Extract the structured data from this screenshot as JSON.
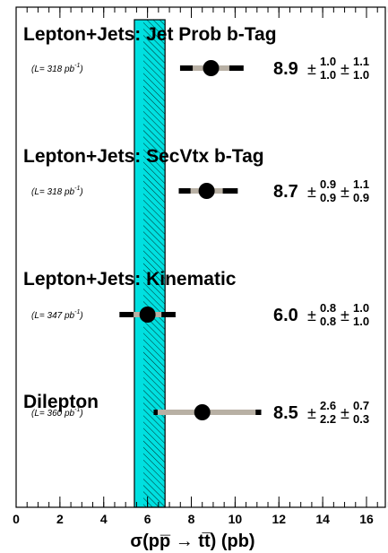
{
  "chart_data": {
    "type": "summary",
    "xlabel": "σ(pp̅ → tt̅) (pb)",
    "xlim": [
      0,
      17
    ],
    "xticks": [
      0,
      2,
      4,
      6,
      8,
      10,
      12,
      14,
      16
    ],
    "xminor_step": 0.5,
    "error_symbol": "±",
    "band": {
      "range": [
        5.4,
        6.8
      ],
      "color": "#00e0e0"
    },
    "measurements": [
      {
        "title": "Lepton+Jets: Jet Prob b-Tag",
        "lumi": [
          "(L= 318 pb",
          "-1",
          ")"
        ],
        "value": 8.9,
        "stat_up": 1.0,
        "stat_down": 1.0,
        "syst_up": 1.1,
        "syst_down": 1.0,
        "value_labels": {
          "value": "8.9",
          "stat_up": "1.0",
          "stat_down": "1.0",
          "syst_up": "1.1",
          "syst_down": "1.0"
        }
      },
      {
        "title": "Lepton+Jets: SecVtx b-Tag",
        "lumi": [
          "(L= 318 pb",
          "-1",
          ")"
        ],
        "value": 8.7,
        "stat_up": 0.9,
        "stat_down": 0.9,
        "syst_up": 1.1,
        "syst_down": 0.9,
        "value_labels": {
          "value": "8.7",
          "stat_up": "0.9",
          "stat_down": "0.9",
          "syst_up": "1.1",
          "syst_down": "0.9"
        }
      },
      {
        "title": "Lepton+Jets: Kinematic",
        "lumi": [
          "(L= 347 pb",
          "-1",
          ")"
        ],
        "value": 6.0,
        "stat_up": 0.8,
        "stat_down": 0.8,
        "syst_up": 1.0,
        "syst_down": 1.0,
        "value_labels": {
          "value": "6.0",
          "stat_up": "0.8",
          "stat_down": "0.8",
          "syst_up": "1.0",
          "syst_down": "1.0"
        }
      },
      {
        "title": "Dilepton",
        "lumi": [
          "(L= 360 pb",
          "-1",
          ")"
        ],
        "value": 8.5,
        "stat_up": 2.6,
        "stat_down": 2.2,
        "syst_up": 0.7,
        "syst_down": 0.3,
        "value_labels": {
          "value": "8.5",
          "stat_up": "2.6",
          "stat_down": "2.2",
          "syst_up": "0.7",
          "syst_down": "0.3"
        }
      }
    ]
  }
}
